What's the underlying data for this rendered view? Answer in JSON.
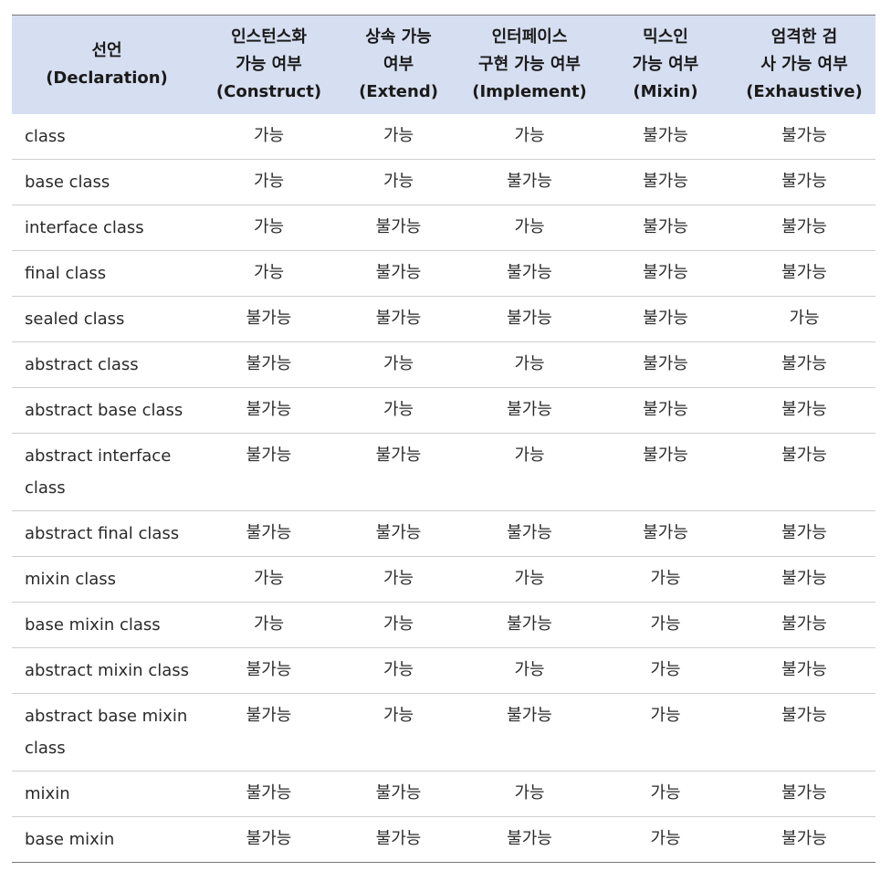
{
  "table": {
    "headers": [
      {
        "lines": [
          "선언",
          "(Declaration)"
        ]
      },
      {
        "lines": [
          "인스턴스화",
          "가능 여부",
          "(Construct)"
        ]
      },
      {
        "lines": [
          "상속 가능",
          "여부",
          "(Extend)"
        ]
      },
      {
        "lines": [
          "인터페이스",
          "구현 가능 여부",
          "(Implement)"
        ]
      },
      {
        "lines": [
          "믹스인",
          "가능 여부",
          "(Mixin)"
        ]
      },
      {
        "lines": [
          "엄격한 검",
          "사 가능 여부",
          "(Exhaustive)"
        ]
      }
    ],
    "rows": [
      {
        "declaration": "class",
        "construct": "가능",
        "extend": "가능",
        "implement": "가능",
        "mixin": "불가능",
        "exhaustive": "불가능"
      },
      {
        "declaration": "base class",
        "construct": "가능",
        "extend": "가능",
        "implement": "불가능",
        "mixin": "불가능",
        "exhaustive": "불가능"
      },
      {
        "declaration": "interface class",
        "construct": "가능",
        "extend": "불가능",
        "implement": "가능",
        "mixin": "불가능",
        "exhaustive": "불가능"
      },
      {
        "declaration": "final class",
        "construct": "가능",
        "extend": "불가능",
        "implement": "불가능",
        "mixin": "불가능",
        "exhaustive": "불가능"
      },
      {
        "declaration": "sealed class",
        "construct": "불가능",
        "extend": "불가능",
        "implement": "불가능",
        "mixin": "불가능",
        "exhaustive": "가능"
      },
      {
        "declaration": "abstract class",
        "construct": "불가능",
        "extend": "가능",
        "implement": "가능",
        "mixin": "불가능",
        "exhaustive": "불가능"
      },
      {
        "declaration": "abstract base class",
        "construct": "불가능",
        "extend": "가능",
        "implement": "불가능",
        "mixin": "불가능",
        "exhaustive": "불가능"
      },
      {
        "declaration": "abstract interface class",
        "construct": "불가능",
        "extend": "불가능",
        "implement": "가능",
        "mixin": "불가능",
        "exhaustive": "불가능"
      },
      {
        "declaration": "abstract final class",
        "construct": "불가능",
        "extend": "불가능",
        "implement": "불가능",
        "mixin": "불가능",
        "exhaustive": "불가능"
      },
      {
        "declaration": "mixin class",
        "construct": "가능",
        "extend": "가능",
        "implement": "가능",
        "mixin": "가능",
        "exhaustive": "불가능"
      },
      {
        "declaration": "base mixin class",
        "construct": "가능",
        "extend": "가능",
        "implement": "불가능",
        "mixin": "가능",
        "exhaustive": "불가능"
      },
      {
        "declaration": "abstract mixin class",
        "construct": "불가능",
        "extend": "가능",
        "implement": "가능",
        "mixin": "가능",
        "exhaustive": "불가능"
      },
      {
        "declaration": "abstract base mixin class",
        "construct": "불가능",
        "extend": "가능",
        "implement": "불가능",
        "mixin": "가능",
        "exhaustive": "불가능"
      },
      {
        "declaration": "mixin",
        "construct": "불가능",
        "extend": "불가능",
        "implement": "가능",
        "mixin": "가능",
        "exhaustive": "불가능"
      },
      {
        "declaration": "base mixin",
        "construct": "불가능",
        "extend": "불가능",
        "implement": "불가능",
        "mixin": "가능",
        "exhaustive": "불가능"
      }
    ]
  }
}
